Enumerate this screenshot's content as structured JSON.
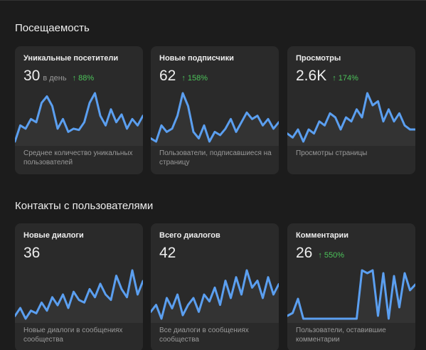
{
  "sections": [
    {
      "title": "Посещаемость",
      "cards": [
        {
          "label": "Уникальные посетители",
          "value": "30",
          "unit": "в день",
          "change": "88%",
          "description": "Среднее количество уникальных пользователей",
          "trend": [
            20,
            45,
            40,
            55,
            50,
            80,
            90,
            75,
            40,
            55,
            35,
            40,
            38,
            50,
            80,
            95,
            60,
            45,
            70,
            50,
            62,
            40,
            55,
            45,
            60
          ]
        },
        {
          "label": "Новые подписчики",
          "value": "62",
          "change": "158%",
          "description": "Пользователи, подписавшиеся на страницу",
          "trend": [
            30,
            25,
            50,
            40,
            45,
            65,
            100,
            80,
            40,
            30,
            50,
            25,
            40,
            35,
            45,
            60,
            40,
            55,
            70,
            60,
            65,
            50,
            60,
            45,
            55
          ]
        },
        {
          "label": "Просмотры",
          "value": "2.6K",
          "change": "174%",
          "description": "Просмотры страницы",
          "trend": [
            40,
            35,
            45,
            30,
            45,
            40,
            55,
            50,
            65,
            60,
            45,
            60,
            55,
            70,
            60,
            90,
            75,
            80,
            55,
            70,
            55,
            65,
            50,
            45,
            45
          ]
        }
      ]
    },
    {
      "title": "Контакты с пользователями",
      "cards": [
        {
          "label": "Новые диалоги",
          "value": "36",
          "description": "Новые диалоги в сообщениях сообщества",
          "trend": [
            10,
            25,
            5,
            20,
            15,
            35,
            20,
            45,
            30,
            50,
            25,
            55,
            40,
            35,
            60,
            45,
            70,
            50,
            40,
            85,
            60,
            45,
            95,
            50,
            75
          ]
        },
        {
          "label": "Всего диалогов",
          "value": "42",
          "description": "Все диалоги в сообщениях сообщества",
          "trend": [
            20,
            30,
            10,
            40,
            25,
            45,
            15,
            30,
            40,
            20,
            45,
            35,
            55,
            30,
            65,
            40,
            70,
            45,
            80,
            55,
            65,
            40,
            70,
            45,
            60
          ]
        },
        {
          "label": "Комментарии",
          "value": "26",
          "change": "550%",
          "description": "Пользователи, оставившие комментарии",
          "trend": [
            15,
            20,
            45,
            10,
            10,
            10,
            10,
            10,
            10,
            10,
            10,
            10,
            10,
            10,
            95,
            90,
            95,
            15,
            90,
            10,
            85,
            30,
            90,
            60,
            70
          ]
        }
      ]
    }
  ]
}
